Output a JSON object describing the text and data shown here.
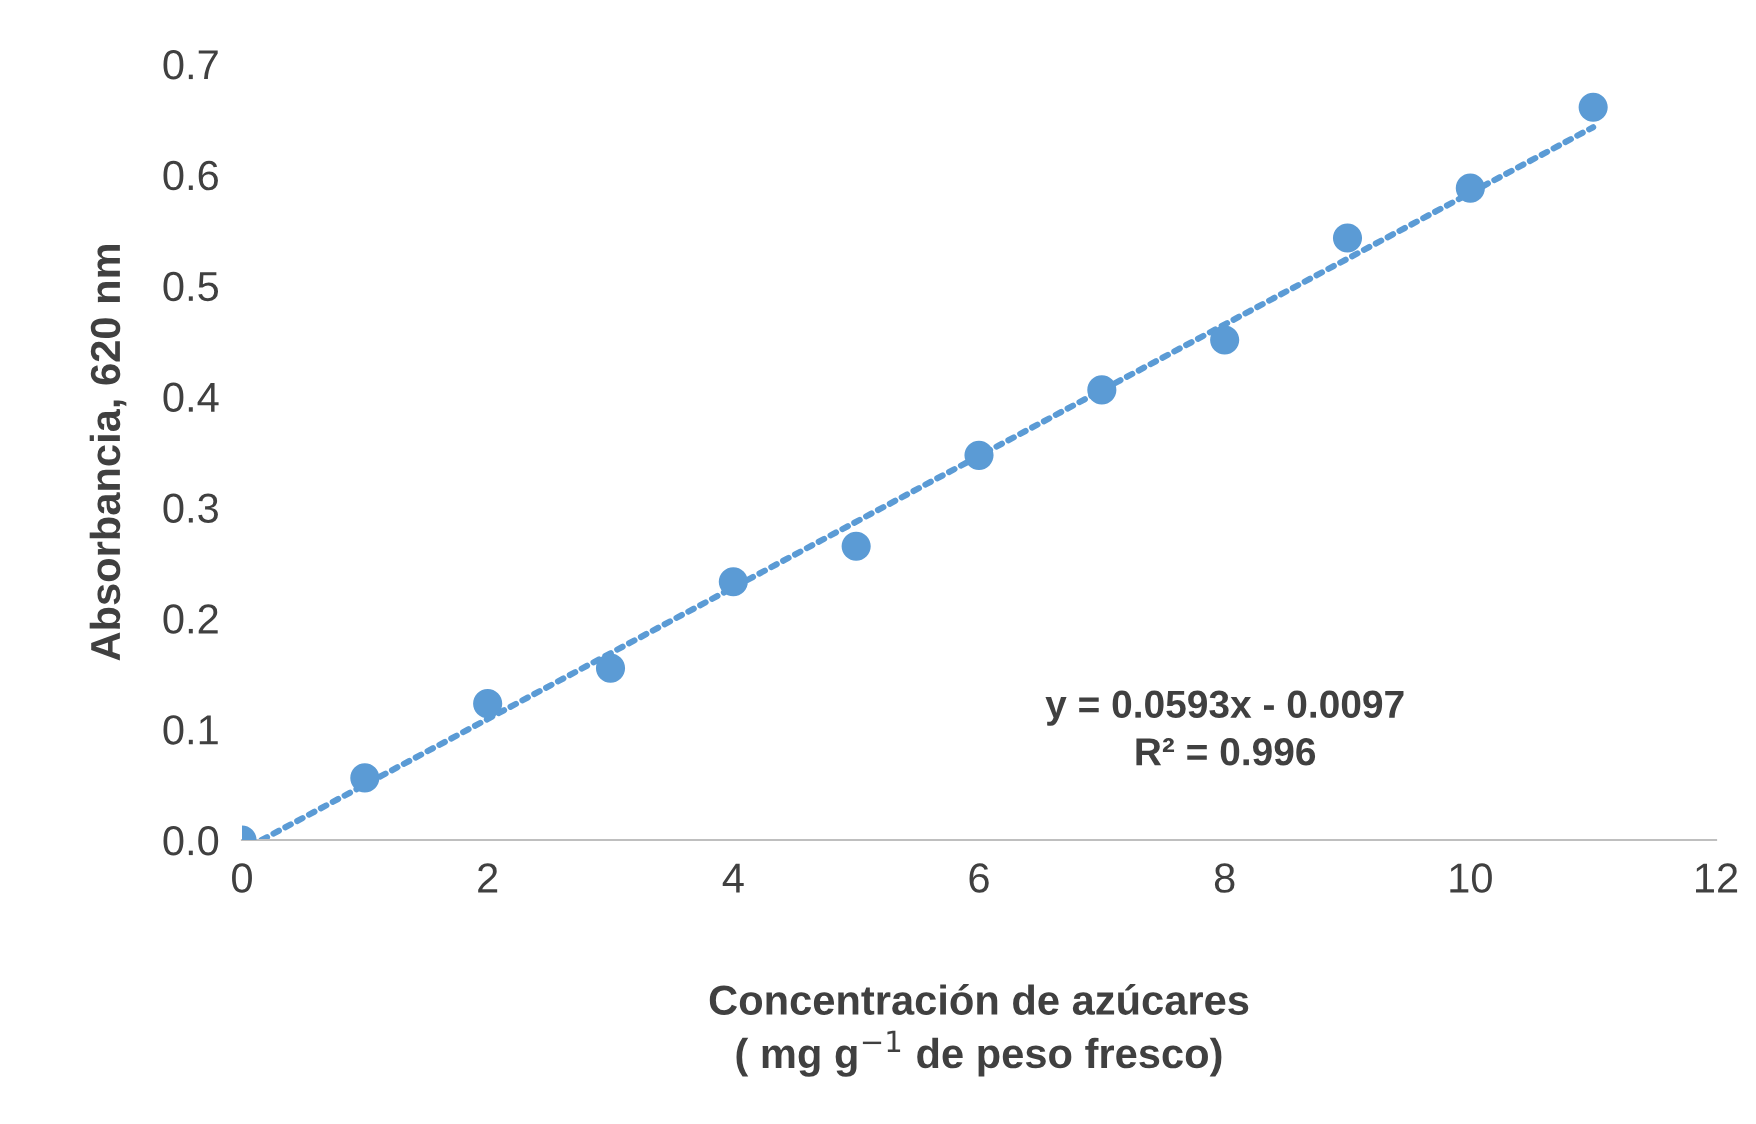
{
  "chart_data": {
    "type": "scatter",
    "xlabel": "Concentración de azúcares\n( mg g$^{−1}$ de peso fresco)",
    "ylabel": "Absorbancia, 620 nm",
    "series": [
      {
        "color": "#5b9bd5",
        "x": [
          0,
          1,
          2,
          3,
          4,
          5,
          6,
          7,
          8,
          9,
          10,
          11
        ],
        "values": [
          0.0,
          0.056,
          0.123,
          0.155,
          0.233,
          0.265,
          0.347,
          0.406,
          0.451,
          0.543,
          0.588,
          0.661
        ],
        "marker": "circle"
      },
      {
        "type": "line",
        "color": "#5b9bd5",
        "x": [
          0.16,
          11
        ],
        "values": [
          0.0,
          0.643
        ],
        "line_style": "dotted",
        "marker": "none"
      }
    ],
    "annotations": [
      "y = 0.0593x - 0.0097\nR² = 0.996"
    ],
    "xlim": [
      0,
      12
    ],
    "xticks": [
      0,
      2,
      4,
      6,
      8,
      10,
      12
    ],
    "ylim": [
      0,
      0.7
    ],
    "yticks": [
      {
        "value": 0,
        "label": "0.0"
      },
      0.1,
      0.2,
      0.3,
      0.4,
      0.5,
      0.6,
      0.7
    ],
    "grid": false,
    "legend": false
  }
}
